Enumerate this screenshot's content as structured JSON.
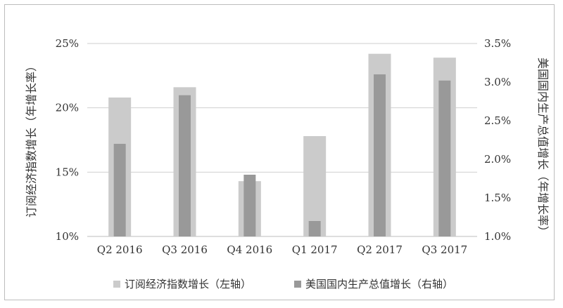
{
  "chart_data": {
    "type": "bar",
    "categories": [
      "Q2 2016",
      "Q3 2016",
      "Q4 2016",
      "Q1 2017",
      "Q2 2017",
      "Q3 2017"
    ],
    "series": [
      {
        "name": "订阅经济指数增长（左轴）",
        "axis": "left",
        "color": "#cbcbcb",
        "values": [
          20.8,
          21.6,
          14.3,
          17.8,
          24.2,
          23.9
        ]
      },
      {
        "name": "美国国内生产总值增长（右轴）",
        "axis": "right",
        "color": "#999999",
        "values": [
          2.2,
          2.83,
          1.8,
          1.2,
          3.1,
          3.02
        ]
      }
    ],
    "y_left": {
      "label": "订阅经济指数增长（年增长率）",
      "ylim": [
        10,
        25
      ],
      "ticks": [
        10,
        15,
        20,
        25
      ],
      "tick_labels": [
        "10%",
        "15%",
        "20%",
        "25%"
      ]
    },
    "y_right": {
      "label": "美国国内生产总值增长（年增长率）",
      "ylim": [
        1.0,
        3.5
      ],
      "ticks": [
        1.0,
        1.5,
        2.0,
        2.5,
        3.0,
        3.5
      ],
      "tick_labels": [
        "1.0%",
        "1.5%",
        "2.0%",
        "2.5%",
        "3.0%",
        "3.5%"
      ]
    },
    "grid": true,
    "legend": "bottom"
  }
}
